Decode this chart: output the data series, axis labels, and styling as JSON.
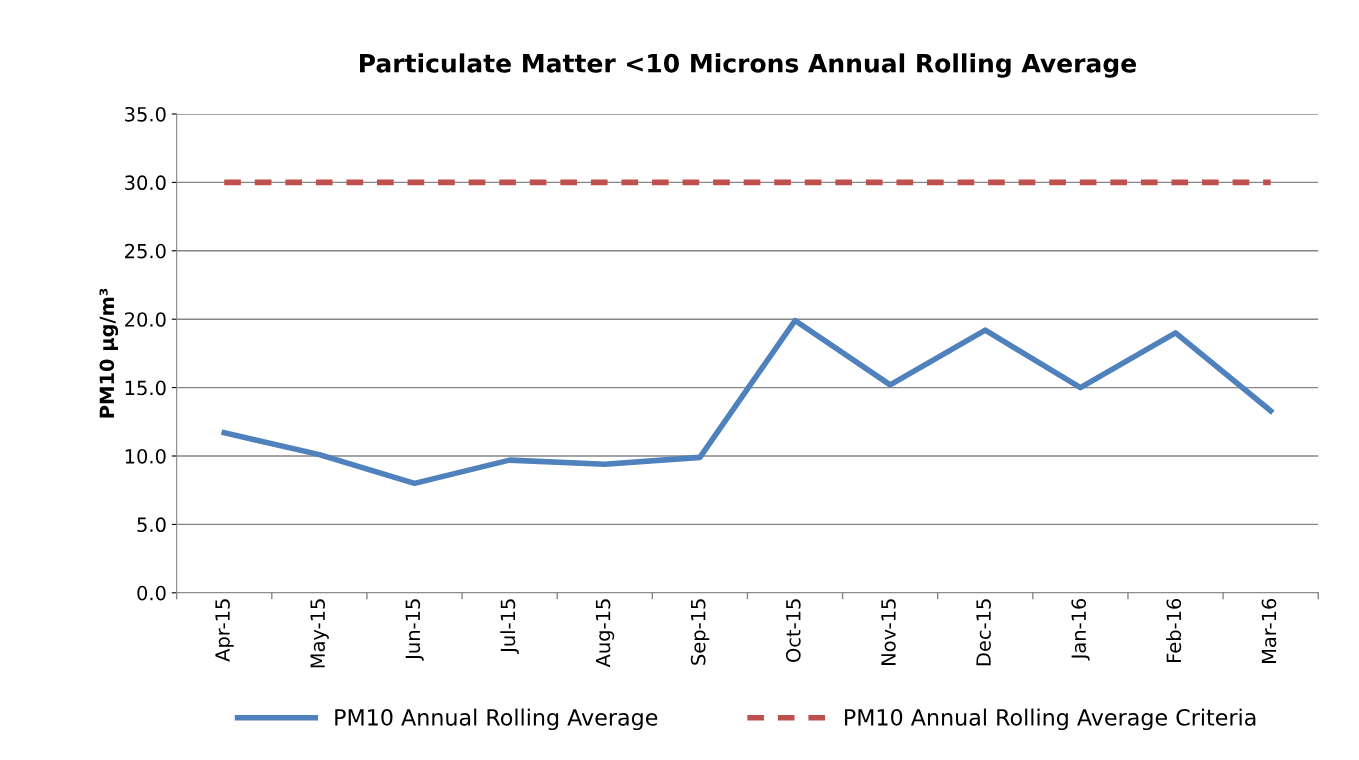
{
  "chart_data": {
    "type": "line",
    "title": "Particulate Matter <10 Microns Annual Rolling Average",
    "ylabel": "PM10 µg/m³",
    "categories": [
      "Apr-15",
      "May-15",
      "Jun-15",
      "Jul-15",
      "Aug-15",
      "Sep-15",
      "Oct-15",
      "Nov-15",
      "Dec-15",
      "Jan-16",
      "Feb-16",
      "Mar-16"
    ],
    "series": [
      {
        "name": "PM10 Annual Rolling Average",
        "color": "#4f81bd",
        "line_style": "solid",
        "values": [
          11.7,
          10.1,
          8.0,
          9.7,
          9.4,
          9.9,
          19.9,
          15.2,
          19.2,
          15.0,
          19.0,
          13.3
        ]
      },
      {
        "name": "PM10 Annual Rolling Average Criteria",
        "color": "#c0504d",
        "line_style": "dashed",
        "values": [
          30,
          30,
          30,
          30,
          30,
          30,
          30,
          30,
          30,
          30,
          30,
          30
        ]
      }
    ],
    "ylim": [
      0,
      35
    ],
    "yticks": [
      {
        "value": 0,
        "label": "0.0"
      },
      {
        "value": 5,
        "label": "5.0"
      },
      {
        "value": 10,
        "label": "10.0"
      },
      {
        "value": 15,
        "label": "15.0"
      },
      {
        "value": 20,
        "label": "20.0"
      },
      {
        "value": 25,
        "label": "25.0"
      },
      {
        "value": 30,
        "label": "30.0"
      },
      {
        "value": 35,
        "label": "35.0"
      }
    ],
    "grid": "y",
    "legend": "bottom",
    "marker": "none"
  }
}
